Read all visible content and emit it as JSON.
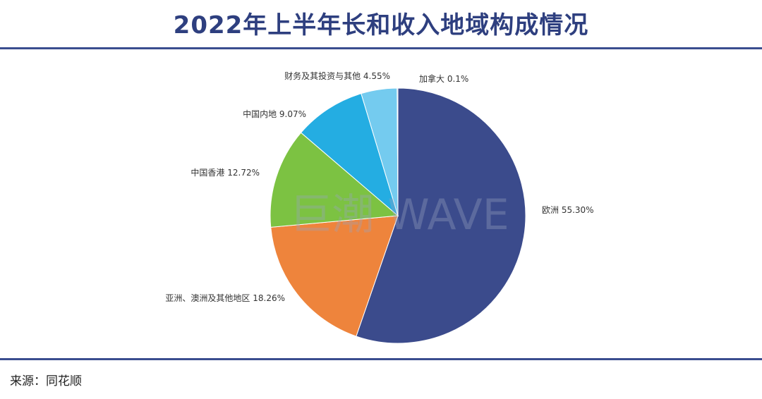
{
  "title": "2022年上半年长和收入地域构成情况",
  "source": "来源：同花顺",
  "watermark": "巨潮 WAVE",
  "chart_data": {
    "type": "pie",
    "title": "2022年上半年长和收入地域构成情况",
    "start": "12 o'clock",
    "direction": "clockwise",
    "slices": [
      {
        "name": "欧洲",
        "value": 55.3,
        "label": "欧洲 55.30%",
        "color": "#3b4b8c"
      },
      {
        "name": "亚洲、澳洲及其他地区",
        "value": 18.26,
        "label": "亚洲、澳洲及其他地区 18.26%",
        "color": "#ee843c"
      },
      {
        "name": "中国香港",
        "value": 12.72,
        "label": "中国香港 12.72%",
        "color": "#7cc242"
      },
      {
        "name": "中国内地",
        "value": 9.07,
        "label": "中国内地 9.07%",
        "color": "#24ade2"
      },
      {
        "name": "财务及其投资与其他",
        "value": 4.55,
        "label": "财务及其投资与其他 4.55%",
        "color": "#74cbef"
      },
      {
        "name": "加拿大",
        "value": 0.1,
        "label": "加拿大 0.1%",
        "color": "#5a6aa0"
      }
    ]
  }
}
